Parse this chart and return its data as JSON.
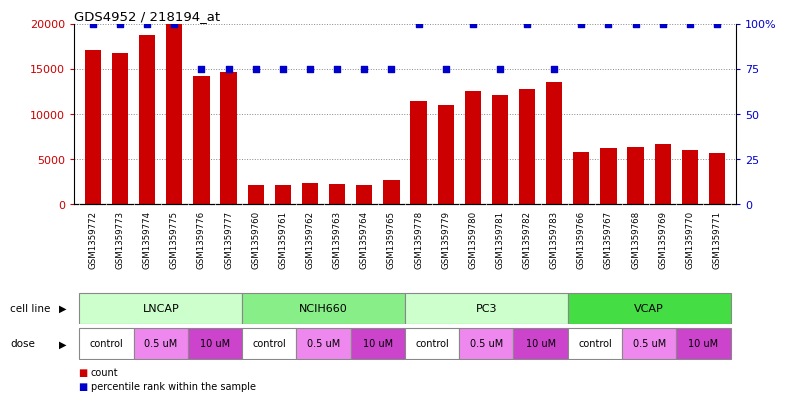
{
  "title": "GDS4952 / 218194_at",
  "samples": [
    "GSM1359772",
    "GSM1359773",
    "GSM1359774",
    "GSM1359775",
    "GSM1359776",
    "GSM1359777",
    "GSM1359760",
    "GSM1359761",
    "GSM1359762",
    "GSM1359763",
    "GSM1359764",
    "GSM1359765",
    "GSM1359778",
    "GSM1359779",
    "GSM1359780",
    "GSM1359781",
    "GSM1359782",
    "GSM1359783",
    "GSM1359766",
    "GSM1359767",
    "GSM1359768",
    "GSM1359769",
    "GSM1359770",
    "GSM1359771"
  ],
  "counts": [
    17100,
    16700,
    18700,
    20000,
    14200,
    14600,
    2200,
    2100,
    2400,
    2300,
    2200,
    2700,
    11400,
    11000,
    12500,
    12100,
    12800,
    13500,
    5800,
    6200,
    6400,
    6700,
    6000,
    5700
  ],
  "percentile_ranks": [
    100,
    100,
    100,
    100,
    75,
    75,
    75,
    75,
    75,
    75,
    75,
    75,
    100,
    75,
    100,
    75,
    100,
    75,
    100,
    100,
    100,
    100,
    100,
    100
  ],
  "bar_color": "#cc0000",
  "dot_color": "#0000cc",
  "ylim_left": [
    0,
    20000
  ],
  "ylim_right": [
    0,
    100
  ],
  "yticks_left": [
    0,
    5000,
    10000,
    15000,
    20000
  ],
  "yticks_right": [
    0,
    25,
    50,
    75,
    100
  ],
  "ytick_labels_left": [
    "0",
    "5000",
    "10000",
    "15000",
    "20000"
  ],
  "ytick_labels_right": [
    "0",
    "25",
    "50",
    "75",
    "100%"
  ],
  "cell_lines": [
    {
      "label": "LNCAP",
      "start": 0,
      "end": 6,
      "color": "#ccffcc"
    },
    {
      "label": "NCIH660",
      "start": 6,
      "end": 12,
      "color": "#88ee88"
    },
    {
      "label": "PC3",
      "start": 12,
      "end": 18,
      "color": "#ccffcc"
    },
    {
      "label": "VCAP",
      "start": 18,
      "end": 24,
      "color": "#44dd44"
    }
  ],
  "doses": [
    {
      "label": "control",
      "start": 0,
      "end": 2,
      "color": "#ffffff"
    },
    {
      "label": "0.5 uM",
      "start": 2,
      "end": 4,
      "color": "#ee88ee"
    },
    {
      "label": "10 uM",
      "start": 4,
      "end": 6,
      "color": "#cc44cc"
    },
    {
      "label": "control",
      "start": 6,
      "end": 8,
      "color": "#ffffff"
    },
    {
      "label": "0.5 uM",
      "start": 8,
      "end": 10,
      "color": "#ee88ee"
    },
    {
      "label": "10 uM",
      "start": 10,
      "end": 12,
      "color": "#cc44cc"
    },
    {
      "label": "control",
      "start": 12,
      "end": 14,
      "color": "#ffffff"
    },
    {
      "label": "0.5 uM",
      "start": 14,
      "end": 16,
      "color": "#ee88ee"
    },
    {
      "label": "10 uM",
      "start": 16,
      "end": 18,
      "color": "#cc44cc"
    },
    {
      "label": "control",
      "start": 18,
      "end": 20,
      "color": "#ffffff"
    },
    {
      "label": "0.5 uM",
      "start": 20,
      "end": 22,
      "color": "#ee88ee"
    },
    {
      "label": "10 uM",
      "start": 22,
      "end": 24,
      "color": "#cc44cc"
    }
  ],
  "legend_count_label": "count",
  "legend_pct_label": "percentile rank within the sample",
  "background_color": "#ffffff",
  "grid_color": "#888888",
  "tick_label_color": "#cc0000",
  "right_tick_color": "#0000cc",
  "xlabel_bg_color": "#dddddd",
  "cell_line_label": "cell line",
  "dose_label": "dose"
}
